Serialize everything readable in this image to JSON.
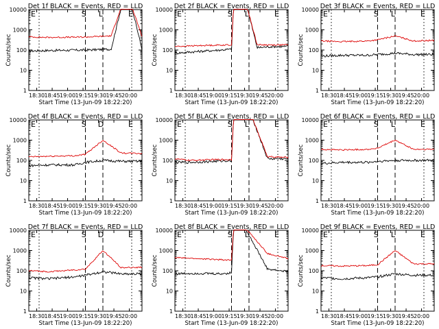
{
  "chart_data": [
    {
      "type": "line",
      "title": "Det 1f BLACK = Events, RED = LLD",
      "xlabel": "Start Time (13-Jun-09 18:22:20)",
      "ylabel": "Counts/sec",
      "ylim": [
        1,
        10000
      ],
      "y_scale": "log",
      "x_ticks": [
        "18:30",
        "18:45",
        "19:00",
        "19:15",
        "19:30",
        "19:45",
        "20:00"
      ],
      "y_ticks": [
        "1",
        "10",
        "100",
        "1000",
        "10000"
      ],
      "markers": [
        "E",
        "S",
        "L",
        "E"
      ],
      "series": [
        {
          "color": "#000000",
          "x": [
            0,
            18,
            55,
            80,
            90,
            100,
            110
          ],
          "y": [
            90,
            95,
            100,
            110,
            14000,
            14000,
            110
          ]
        },
        {
          "color": "#dd0000",
          "x": [
            0,
            18,
            55,
            80,
            90,
            100,
            110
          ],
          "y": [
            450,
            420,
            440,
            500,
            14000,
            14000,
            500
          ]
        }
      ]
    },
    {
      "type": "line",
      "title": "Det 2f BLACK = Events, RED = LLD",
      "xlabel": "Start Time (13-Jun-09 18:22:20)",
      "ylabel": "Counts/sec",
      "ylim": [
        1,
        10000
      ],
      "y_scale": "log",
      "x_ticks": [
        "18:30",
        "18:45",
        "19:00",
        "19:15",
        "19:30",
        "19:45",
        "20:00"
      ],
      "y_ticks": [
        "1",
        "10",
        "100",
        "1000",
        "10000"
      ],
      "markers": [
        "E",
        "S",
        "L",
        "E"
      ],
      "series": [
        {
          "color": "#000000",
          "x": [
            0,
            15,
            30,
            55,
            57,
            70,
            80,
            95,
            110
          ],
          "y": [
            70,
            80,
            90,
            110,
            14000,
            14000,
            130,
            150,
            150
          ]
        },
        {
          "color": "#dd0000",
          "x": [
            0,
            15,
            30,
            55,
            57,
            70,
            80,
            95,
            110
          ],
          "y": [
            150,
            160,
            170,
            180,
            14000,
            14000,
            180,
            180,
            180
          ]
        }
      ]
    },
    {
      "type": "line",
      "title": "Det 3f BLACK = Events, RED = LLD",
      "xlabel": "Start Time (13-Jun-09 18:22:20)",
      "ylabel": "Counts/sec",
      "ylim": [
        1,
        10000
      ],
      "y_scale": "log",
      "x_ticks": [
        "18:30",
        "18:45",
        "19:00",
        "19:15",
        "19:30",
        "19:45",
        "20:00"
      ],
      "y_ticks": [
        "1",
        "10",
        "100",
        "1000",
        "10000"
      ],
      "markers": [
        "E",
        "S",
        "L",
        "E"
      ],
      "series": [
        {
          "color": "#000000",
          "x": [
            0,
            20,
            45,
            55,
            72,
            90,
            110
          ],
          "y": [
            50,
            55,
            55,
            60,
            70,
            60,
            60
          ]
        },
        {
          "color": "#dd0000",
          "x": [
            0,
            20,
            45,
            55,
            72,
            90,
            110
          ],
          "y": [
            280,
            260,
            280,
            320,
            500,
            280,
            300
          ]
        }
      ]
    },
    {
      "type": "line",
      "title": "Det 4f BLACK = Events, RED = LLD",
      "xlabel": "Start Time (13-Jun-09 18:22:20)",
      "ylabel": "Counts/sec",
      "ylim": [
        1,
        10000
      ],
      "y_scale": "log",
      "x_ticks": [
        "18:30",
        "18:45",
        "19:00",
        "19:15",
        "19:30",
        "19:45",
        "20:00"
      ],
      "y_ticks": [
        "1",
        "10",
        "100",
        "1000",
        "10000"
      ],
      "markers": [
        "E",
        "S",
        "D",
        "E"
      ],
      "series": [
        {
          "color": "#000000",
          "x": [
            0,
            20,
            45,
            55,
            72,
            90,
            110
          ],
          "y": [
            55,
            60,
            60,
            80,
            100,
            90,
            90
          ]
        },
        {
          "color": "#dd0000",
          "x": [
            0,
            20,
            45,
            55,
            72,
            90,
            110
          ],
          "y": [
            150,
            160,
            170,
            200,
            1000,
            230,
            220
          ]
        }
      ]
    },
    {
      "type": "line",
      "title": "Det 5f BLACK = Events, RED = LLD",
      "xlabel": "Start Time (13-Jun-09 18:22:20)",
      "ylabel": "Counts/sec",
      "ylim": [
        1,
        10000
      ],
      "y_scale": "log",
      "x_ticks": [
        "18:30",
        "18:45",
        "19:00",
        "19:15",
        "19:30",
        "19:45",
        "20:00"
      ],
      "y_ticks": [
        "1",
        "10",
        "100",
        "1000",
        "10000"
      ],
      "markers": [
        "E",
        "S",
        "L",
        "E"
      ],
      "series": [
        {
          "color": "#000000",
          "x": [
            0,
            15,
            40,
            55,
            57,
            75,
            90,
            110
          ],
          "y": [
            80,
            80,
            90,
            100,
            14000,
            14000,
            120,
            120
          ]
        },
        {
          "color": "#dd0000",
          "x": [
            0,
            15,
            40,
            55,
            57,
            75,
            90,
            110
          ],
          "y": [
            120,
            100,
            110,
            110,
            14000,
            14000,
            150,
            140
          ]
        }
      ]
    },
    {
      "type": "line",
      "title": "Det 6f BLACK = Events, RED = LLD",
      "xlabel": "Start Time (13-Jun-09 18:22:20)",
      "ylabel": "Counts/sec",
      "ylim": [
        1,
        10000
      ],
      "y_scale": "log",
      "x_ticks": [
        "18:30",
        "18:45",
        "19:00",
        "19:15",
        "19:30",
        "19:45",
        "20:00"
      ],
      "y_ticks": [
        "1",
        "10",
        "100",
        "1000",
        "10000"
      ],
      "markers": [
        "E",
        "S",
        "L",
        "E"
      ],
      "series": [
        {
          "color": "#000000",
          "x": [
            0,
            20,
            45,
            55,
            72,
            90,
            110
          ],
          "y": [
            70,
            80,
            80,
            90,
            100,
            100,
            100
          ]
        },
        {
          "color": "#dd0000",
          "x": [
            0,
            20,
            45,
            55,
            72,
            90,
            110
          ],
          "y": [
            350,
            330,
            350,
            400,
            1000,
            350,
            350
          ]
        }
      ]
    },
    {
      "type": "line",
      "title": "Det 7f BLACK = Events, RED = LLD",
      "xlabel": "Start Time (13-Jun-09 18:22:20)",
      "ylabel": "Counts/sec",
      "ylim": [
        1,
        10000
      ],
      "y_scale": "log",
      "x_ticks": [
        "18:30",
        "18:45",
        "19:00",
        "19:15",
        "19:30",
        "19:45",
        "20:00"
      ],
      "y_ticks": [
        "1",
        "10",
        "100",
        "1000",
        "10000"
      ],
      "markers": [
        "E",
        "S",
        "D",
        "E"
      ],
      "series": [
        {
          "color": "#000000",
          "x": [
            0,
            20,
            45,
            55,
            72,
            90,
            110
          ],
          "y": [
            45,
            40,
            50,
            60,
            90,
            70,
            70
          ]
        },
        {
          "color": "#dd0000",
          "x": [
            0,
            20,
            45,
            55,
            72,
            90,
            110
          ],
          "y": [
            100,
            90,
            110,
            120,
            1000,
            140,
            150
          ]
        }
      ]
    },
    {
      "type": "line",
      "title": "Det 8f BLACK = Events, RED = LLD",
      "xlabel": "Start Time (13-Jun-09 18:22:20)",
      "ylabel": "Counts/sec",
      "ylim": [
        1,
        10000
      ],
      "y_scale": "log",
      "x_ticks": [
        "18:30",
        "18:45",
        "19:00",
        "19:15",
        "19:30",
        "19:45",
        "20:00"
      ],
      "y_ticks": [
        "1",
        "10",
        "100",
        "1000",
        "10000"
      ],
      "markers": [
        "E",
        "S",
        "L",
        "E"
      ],
      "series": [
        {
          "color": "#000000",
          "x": [
            0,
            20,
            45,
            55,
            57,
            68,
            90,
            110
          ],
          "y": [
            70,
            75,
            70,
            80,
            14000,
            14000,
            120,
            90
          ]
        },
        {
          "color": "#dd0000",
          "x": [
            0,
            20,
            45,
            55,
            57,
            68,
            90,
            110
          ],
          "y": [
            450,
            400,
            350,
            330,
            14000,
            14000,
            700,
            400
          ]
        }
      ]
    },
    {
      "type": "line",
      "title": "Det 9f BLACK = Events, RED = LLD",
      "xlabel": "Start Time (13-Jun-09 18:22:20)",
      "ylabel": "Counts/sec",
      "ylim": [
        1,
        10000
      ],
      "y_scale": "log",
      "x_ticks": [
        "18:30",
        "18:45",
        "19:00",
        "19:15",
        "19:30",
        "19:45",
        "20:00"
      ],
      "y_ticks": [
        "1",
        "10",
        "100",
        "1000",
        "10000"
      ],
      "markers": [
        "E",
        "S",
        "L",
        "E"
      ],
      "series": [
        {
          "color": "#000000",
          "x": [
            0,
            20,
            45,
            55,
            72,
            90,
            110
          ],
          "y": [
            45,
            40,
            45,
            50,
            70,
            60,
            60
          ]
        },
        {
          "color": "#dd0000",
          "x": [
            0,
            20,
            45,
            55,
            72,
            90,
            110
          ],
          "y": [
            180,
            170,
            180,
            200,
            1000,
            220,
            220
          ]
        }
      ]
    }
  ]
}
